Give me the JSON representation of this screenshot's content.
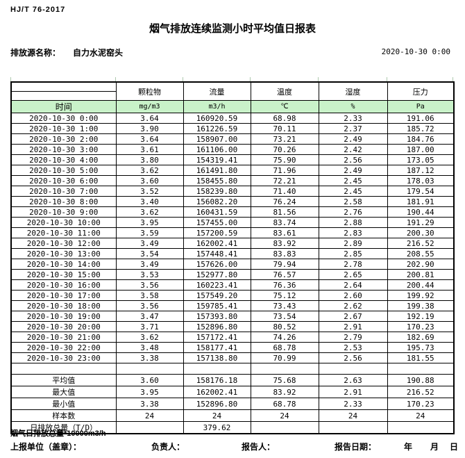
{
  "header": {
    "standard": "HJ/T 76-2017",
    "title": "烟气排放连续监测小时平均值日报表",
    "source_label": "排放源名称：",
    "source_name": "自力水泥窑头",
    "datetime": "2020-10-30 0:00"
  },
  "table": {
    "time_header": "时间",
    "columns": [
      {
        "key": "particulate",
        "name": "颗粒物",
        "unit": "mg/m3"
      },
      {
        "key": "flow",
        "name": "流量",
        "unit": "m3/h"
      },
      {
        "key": "temperature",
        "name": "温度",
        "unit": "℃"
      },
      {
        "key": "humidity",
        "name": "湿度",
        "unit": "%"
      },
      {
        "key": "pressure",
        "name": "压力",
        "unit": "Pa"
      }
    ],
    "rows": [
      {
        "time": "2020-10-30 0:00",
        "values": [
          "3.64",
          "160920.59",
          "68.98",
          "2.33",
          "191.06"
        ]
      },
      {
        "time": "2020-10-30 1:00",
        "values": [
          "3.90",
          "161226.59",
          "70.11",
          "2.37",
          "185.72"
        ]
      },
      {
        "time": "2020-10-30 2:00",
        "values": [
          "3.64",
          "158907.00",
          "73.21",
          "2.49",
          "184.76"
        ]
      },
      {
        "time": "2020-10-30 3:00",
        "values": [
          "3.61",
          "161106.00",
          "70.26",
          "2.42",
          "187.00"
        ]
      },
      {
        "time": "2020-10-30 4:00",
        "values": [
          "3.80",
          "154319.41",
          "75.90",
          "2.56",
          "173.05"
        ]
      },
      {
        "time": "2020-10-30 5:00",
        "values": [
          "3.62",
          "161491.80",
          "71.96",
          "2.49",
          "187.12"
        ]
      },
      {
        "time": "2020-10-30 6:00",
        "values": [
          "3.60",
          "158455.80",
          "72.21",
          "2.45",
          "178.03"
        ]
      },
      {
        "time": "2020-10-30 7:00",
        "values": [
          "3.52",
          "158239.80",
          "71.40",
          "2.45",
          "179.54"
        ]
      },
      {
        "time": "2020-10-30 8:00",
        "values": [
          "3.40",
          "156082.20",
          "76.24",
          "2.58",
          "181.91"
        ]
      },
      {
        "time": "2020-10-30 9:00",
        "values": [
          "3.62",
          "160431.59",
          "81.56",
          "2.76",
          "190.44"
        ]
      },
      {
        "time": "2020-10-30 10:00",
        "values": [
          "3.95",
          "157455.00",
          "83.74",
          "2.88",
          "191.29"
        ]
      },
      {
        "time": "2020-10-30 11:00",
        "values": [
          "3.59",
          "157200.59",
          "83.61",
          "2.83",
          "200.30"
        ]
      },
      {
        "time": "2020-10-30 12:00",
        "values": [
          "3.49",
          "162002.41",
          "83.92",
          "2.89",
          "216.52"
        ]
      },
      {
        "time": "2020-10-30 13:00",
        "values": [
          "3.54",
          "157448.41",
          "83.83",
          "2.85",
          "208.55"
        ]
      },
      {
        "time": "2020-10-30 14:00",
        "values": [
          "3.49",
          "157626.00",
          "79.94",
          "2.78",
          "202.90"
        ]
      },
      {
        "time": "2020-10-30 15:00",
        "values": [
          "3.53",
          "152977.80",
          "76.57",
          "2.65",
          "200.81"
        ]
      },
      {
        "time": "2020-10-30 16:00",
        "values": [
          "3.56",
          "160223.41",
          "76.36",
          "2.64",
          "200.44"
        ]
      },
      {
        "time": "2020-10-30 17:00",
        "values": [
          "3.58",
          "157549.20",
          "75.12",
          "2.60",
          "199.92"
        ]
      },
      {
        "time": "2020-10-30 18:00",
        "values": [
          "3.56",
          "159785.41",
          "73.43",
          "2.62",
          "199.38"
        ]
      },
      {
        "time": "2020-10-30 19:00",
        "values": [
          "3.47",
          "157393.80",
          "73.54",
          "2.67",
          "192.19"
        ]
      },
      {
        "time": "2020-10-30 20:00",
        "values": [
          "3.71",
          "152896.80",
          "80.52",
          "2.91",
          "170.23"
        ]
      },
      {
        "time": "2020-10-30 21:00",
        "values": [
          "3.62",
          "157172.41",
          "74.26",
          "2.79",
          "182.69"
        ]
      },
      {
        "time": "2020-10-30 22:00",
        "values": [
          "3.48",
          "158177.41",
          "68.78",
          "2.53",
          "195.73"
        ]
      },
      {
        "time": "2020-10-30 23:00",
        "values": [
          "3.38",
          "157138.80",
          "70.99",
          "2.56",
          "181.55"
        ]
      }
    ],
    "summary": [
      {
        "key": "average",
        "label": "平均值",
        "values": [
          "3.60",
          "158176.18",
          "75.68",
          "2.63",
          "190.88"
        ]
      },
      {
        "key": "maximum",
        "label": "最大值",
        "values": [
          "3.95",
          "162002.41",
          "83.92",
          "2.91",
          "216.52"
        ]
      },
      {
        "key": "minimum",
        "label": "最小值",
        "values": [
          "3.38",
          "152896.80",
          "68.78",
          "2.33",
          "170.23"
        ]
      },
      {
        "key": "sample-count",
        "label": "样本数",
        "values": [
          "24",
          "24",
          "24",
          "24",
          "24"
        ]
      },
      {
        "key": "daily-total",
        "label": "日排放总量（T/D）",
        "values": [
          "",
          "379.62",
          "",
          "",
          ""
        ]
      }
    ]
  },
  "footer": {
    "note": "烟气日排放总量*10000m3/h",
    "report_unit_label": "上报单位（盖章）：",
    "responsible_label": "负责人：",
    "reporter_label": "报告人：",
    "report_date_label": "报告日期：",
    "year_label": "年",
    "month_label": "月",
    "day_label": "日"
  },
  "colors": {
    "header_green": "#c9f2c9",
    "border": "#000000",
    "text": "#000000"
  }
}
